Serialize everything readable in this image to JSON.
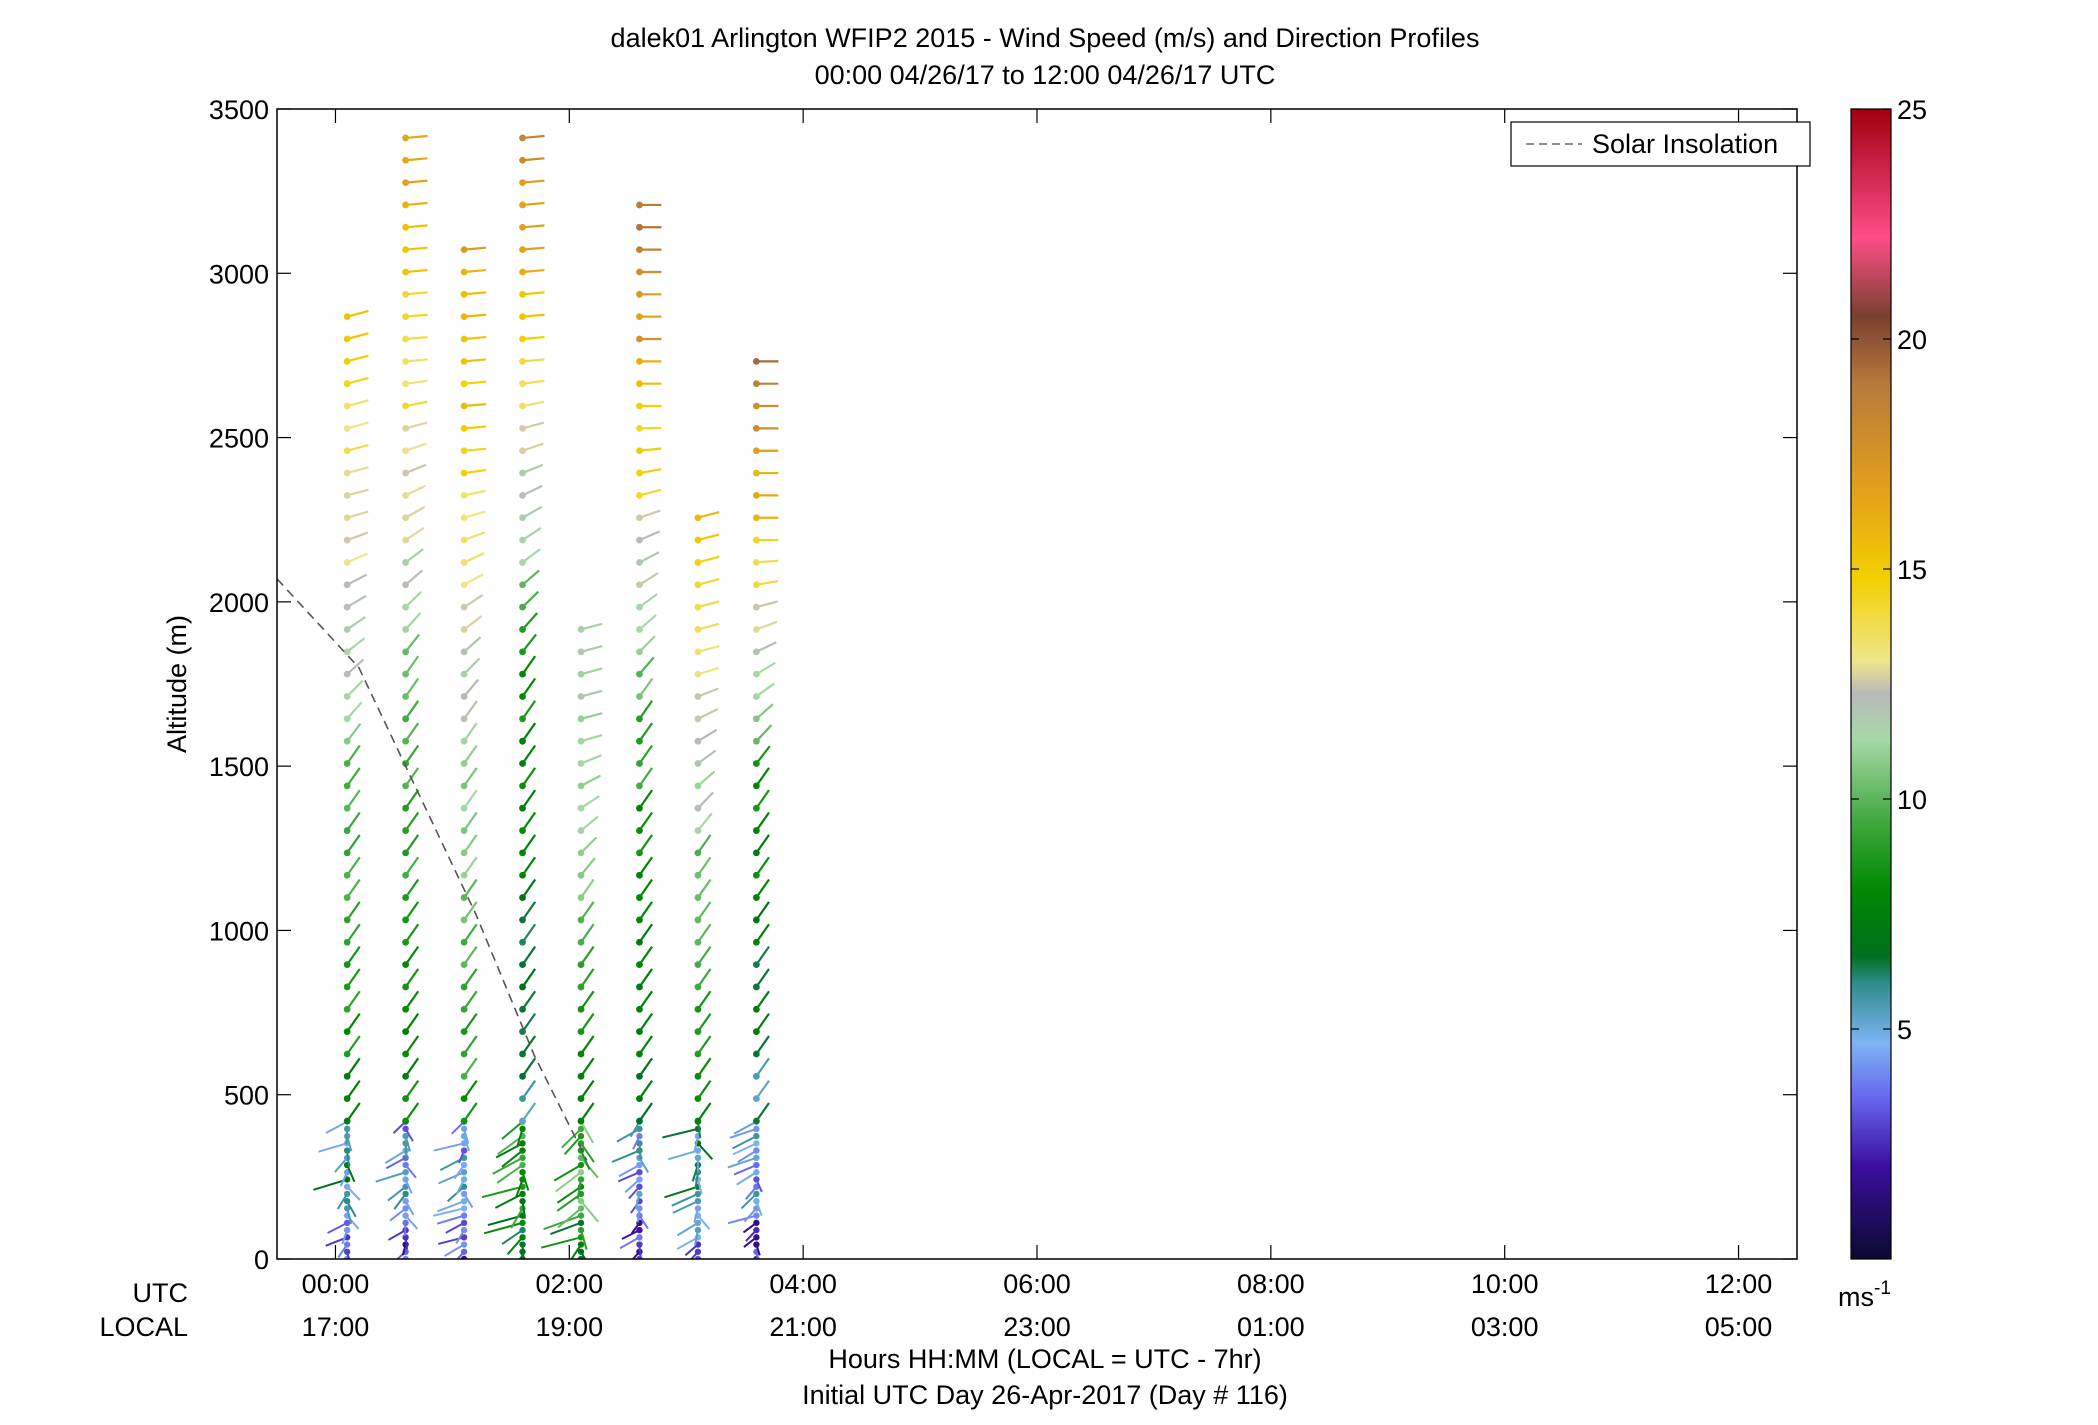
{
  "chart_data": {
    "type": "scatter",
    "title": "dalek01 Arlington WFIP2 2015 - Wind Speed (m/s) and Direction Profiles",
    "subtitle": "00:00 04/26/17 to 12:00 04/26/17  UTC",
    "ylabel": "Altitude (m)",
    "ylim": [
      0,
      3500
    ],
    "y_ticks": [
      "0",
      "500",
      "1000",
      "1500",
      "2000",
      "2500",
      "3000",
      "3500"
    ],
    "xlim_hours": [
      -0.5,
      12.5
    ],
    "x_tick_hours": [
      0,
      2,
      4,
      6,
      8,
      10,
      12
    ],
    "x_ticks_utc": [
      "00:00",
      "02:00",
      "04:00",
      "06:00",
      "08:00",
      "10:00",
      "12:00"
    ],
    "x_ticks_local": [
      "17:00",
      "19:00",
      "21:00",
      "23:00",
      "01:00",
      "03:00",
      "05:00"
    ],
    "x_row_label_utc": "UTC",
    "x_row_label_local": "LOCAL",
    "xlabel": "Hours HH:MM  (LOCAL = UTC - 7hr)",
    "xlabel2": "Initial UTC Day 26-Apr-2017 (Day # 116)",
    "legend": [
      {
        "label": "Solar Insolation",
        "style": "dashed",
        "color": "#808080"
      }
    ],
    "legend_position": "top-right",
    "solar_insolation": {
      "x": [
        -0.5,
        0.2,
        0.8,
        1.2,
        1.7,
        2.15
      ],
      "y": [
        2070,
        1800,
        1350,
        1050,
        620,
        300
      ]
    },
    "colorbar": {
      "label": "ms-1",
      "min": 0,
      "max": 25,
      "ticks": [
        "5",
        "10",
        "15",
        "20",
        "25"
      ],
      "stops": [
        {
          "v": 0,
          "color": "#0a0a30"
        },
        {
          "v": 2,
          "color": "#3a0e9e"
        },
        {
          "v": 3.5,
          "color": "#6666ee"
        },
        {
          "v": 4.7,
          "color": "#7fb4f5"
        },
        {
          "v": 6,
          "color": "#2e8b8b"
        },
        {
          "v": 6.6,
          "color": "#006f1e"
        },
        {
          "v": 8,
          "color": "#008800"
        },
        {
          "v": 9.5,
          "color": "#3ea83e"
        },
        {
          "v": 11.3,
          "color": "#a8d8a8"
        },
        {
          "v": 12.3,
          "color": "#b8b8b8"
        },
        {
          "v": 13,
          "color": "#f0e68c"
        },
        {
          "v": 14.8,
          "color": "#f2d000"
        },
        {
          "v": 16.5,
          "color": "#e6a419"
        },
        {
          "v": 19,
          "color": "#b87a3c"
        },
        {
          "v": 20.5,
          "color": "#7a4030"
        },
        {
          "v": 22.2,
          "color": "#ff4d88"
        },
        {
          "v": 25,
          "color": "#a00010"
        }
      ]
    },
    "profiles": [
      {
        "hour": 0.1,
        "top": 2900,
        "upper_dir": 255,
        "mid_dir": 215,
        "lower_dir": 195,
        "upper_speed": 14,
        "mid_speed": 10,
        "low_speed": 4
      },
      {
        "hour": 0.6,
        "top": 3470,
        "upper_dir": 265,
        "mid_dir": 215,
        "lower_dir": 200,
        "upper_speed": 16,
        "mid_speed": 10,
        "low_speed": 3
      },
      {
        "hour": 1.1,
        "top": 3110,
        "upper_dir": 265,
        "mid_dir": 215,
        "lower_dir": 200,
        "upper_speed": 16,
        "mid_speed": 11,
        "low_speed": 3
      },
      {
        "hour": 1.6,
        "top": 3470,
        "upper_dir": 265,
        "mid_dir": 215,
        "lower_dir": 200,
        "upper_speed": 18,
        "mid_speed": 8,
        "low_speed": 7
      },
      {
        "hour": 2.1,
        "top": 1980,
        "upper_dir": 255,
        "mid_dir": 215,
        "lower_dir": 200,
        "upper_speed": 11,
        "mid_speed": 10,
        "low_speed": 8
      },
      {
        "hour": 2.6,
        "top": 3260,
        "upper_dir": 270,
        "mid_dir": 215,
        "lower_dir": 200,
        "upper_speed": 19,
        "mid_speed": 9,
        "low_speed": 3
      },
      {
        "hour": 3.1,
        "top": 2260,
        "upper_dir": 255,
        "mid_dir": 215,
        "lower_dir": 200,
        "upper_speed": 15,
        "mid_speed": 10,
        "low_speed": 4
      },
      {
        "hour": 3.6,
        "top": 2760,
        "upper_dir": 270,
        "mid_dir": 215,
        "lower_dir": 200,
        "upper_speed": 19,
        "mid_speed": 8,
        "low_speed": 3
      }
    ]
  }
}
